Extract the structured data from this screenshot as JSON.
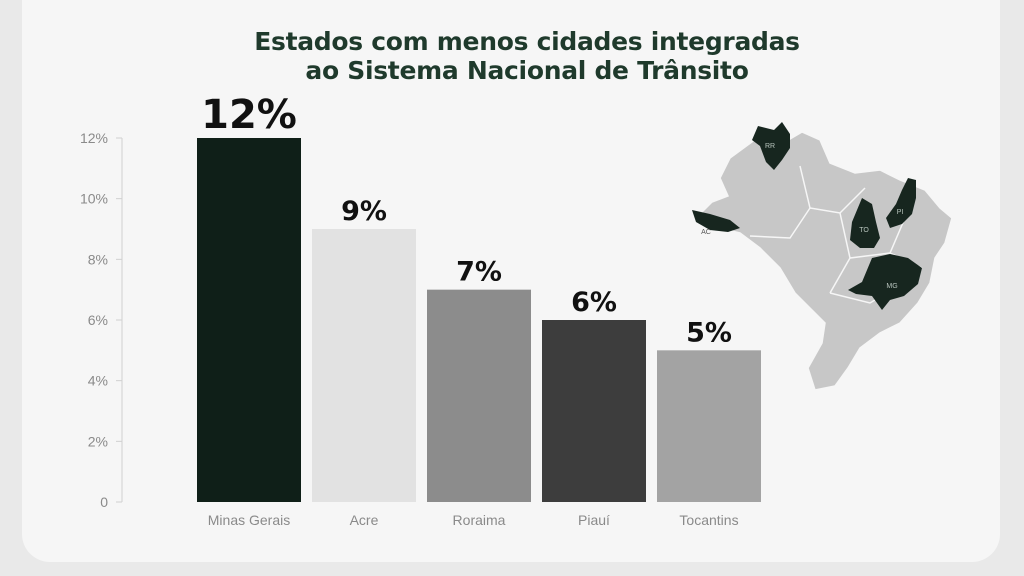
{
  "chart_data": {
    "type": "bar",
    "title": "Estados com menos cidades integradas",
    "subtitle": "ao Sistema Nacional de Trânsito",
    "categories": [
      "Minas Gerais",
      "Acre",
      "Roraima",
      "Piauí",
      "Tocantins"
    ],
    "values": [
      12,
      9,
      7,
      6,
      5
    ],
    "value_labels": [
      "12%",
      "9%",
      "7%",
      "6%",
      "5%"
    ],
    "bar_colors": [
      "#0f1f18",
      "#e2e2e2",
      "#8c8c8c",
      "#3d3d3d",
      "#a3a3a3"
    ],
    "ylim": [
      0,
      12
    ],
    "yticks": [
      0,
      2,
      4,
      6,
      8,
      10,
      12
    ],
    "ytick_labels": [
      "0",
      "2%",
      "4%",
      "6%",
      "8%",
      "10%",
      "12%"
    ],
    "xlabel": "",
    "ylabel": "",
    "grid": false
  },
  "map": {
    "highlight_color": "#17261f",
    "base_color": "#c7c7c7",
    "state_labels": [
      "RR",
      "AC",
      "TO",
      "PI",
      "MG"
    ]
  }
}
